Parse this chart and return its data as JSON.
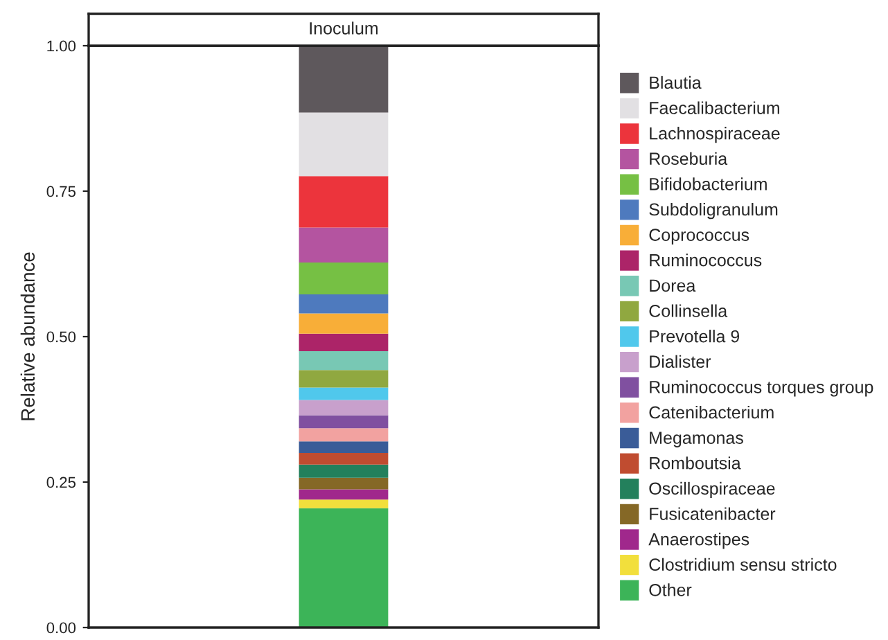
{
  "chart_data": {
    "type": "bar",
    "title": "Inoculum",
    "ylabel": "Relative abundance",
    "categories": [
      null
    ],
    "stacked": true,
    "series": [
      {
        "name": "Other",
        "color": "#3cb458",
        "values": [
          0.205
        ]
      },
      {
        "name": "Clostridium sensu stricto",
        "color": "#f2df3c",
        "values": [
          0.015
        ]
      },
      {
        "name": "Anaerostipes",
        "color": "#a0288c",
        "values": [
          0.0175
        ]
      },
      {
        "name": "Fusicatenibacter",
        "color": "#856826",
        "values": [
          0.02
        ]
      },
      {
        "name": "Oscillospiraceae",
        "color": "#23805c",
        "values": [
          0.0225
        ]
      },
      {
        "name": "Romboutsia",
        "color": "#c04c30",
        "values": [
          0.02
        ]
      },
      {
        "name": "Megamonas",
        "color": "#3a5c98",
        "values": [
          0.02
        ]
      },
      {
        "name": "Catenibacterium",
        "color": "#f2a2a0",
        "values": [
          0.0225
        ]
      },
      {
        "name": "Ruminococcus torques group",
        "color": "#8050a0",
        "values": [
          0.0225
        ]
      },
      {
        "name": "Dialister",
        "color": "#c8a0cc",
        "values": [
          0.026
        ]
      },
      {
        "name": "Prevotella 9",
        "color": "#50c8ec",
        "values": [
          0.0215
        ]
      },
      {
        "name": "Collinsella",
        "color": "#90a840",
        "values": [
          0.03
        ]
      },
      {
        "name": "Dorea",
        "color": "#78c8b4",
        "values": [
          0.0325
        ]
      },
      {
        "name": "Ruminococcus",
        "color": "#ac2468",
        "values": [
          0.03
        ]
      },
      {
        "name": "Coprococcus",
        "color": "#f8ae38",
        "values": [
          0.035
        ]
      },
      {
        "name": "Subdoligranulum",
        "color": "#4e7abe",
        "values": [
          0.0325
        ]
      },
      {
        "name": "Bifidobacterium",
        "color": "#76c044",
        "values": [
          0.055
        ]
      },
      {
        "name": "Roseburia",
        "color": "#b454a0",
        "values": [
          0.06
        ]
      },
      {
        "name": "Lachnospiraceae",
        "color": "#ec343c",
        "values": [
          0.0885
        ]
      },
      {
        "name": "Faecalibacterium",
        "color": "#e2e0e3",
        "values": [
          0.109
        ]
      },
      {
        "name": "Blautia",
        "color": "#5e585c",
        "values": [
          0.115
        ]
      }
    ],
    "ylim": [
      0,
      1.0
    ],
    "yticks": [
      {
        "value": 0,
        "label": "0.00"
      },
      {
        "value": 0.25,
        "label": "0.25"
      },
      {
        "value": 0.5,
        "label": "0.50"
      },
      {
        "value": 0.75,
        "label": "0.75"
      },
      {
        "value": 1.0,
        "label": "1.00"
      }
    ],
    "tick_labels": "y",
    "legend": "right",
    "grid": false
  }
}
